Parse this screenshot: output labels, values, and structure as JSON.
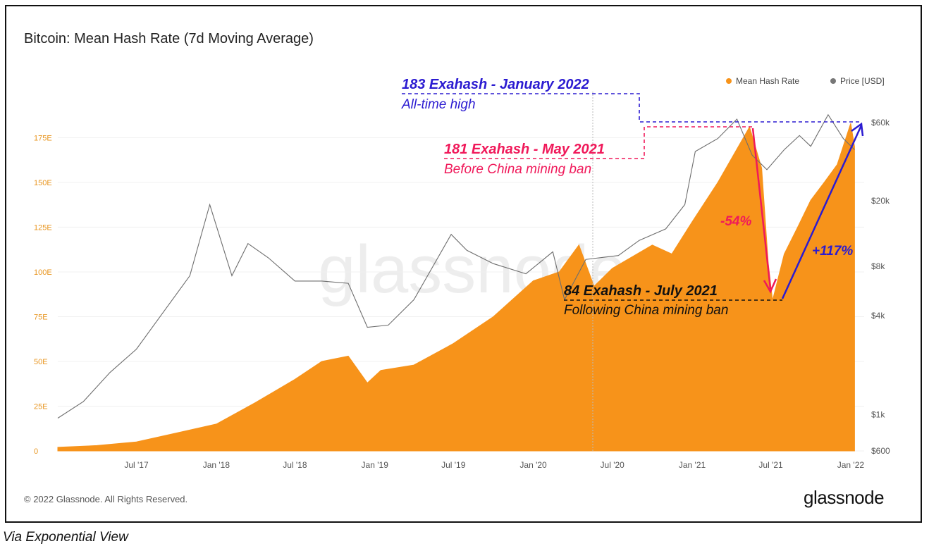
{
  "title": "Bitcoin: Mean Hash Rate (7d Moving Average)",
  "copyright": "© 2022 Glassnode. All Rights Reserved.",
  "brand": "glassnode",
  "watermark": "glassnode",
  "caption": "Via Exponential View",
  "legend": [
    {
      "label": "Mean Hash Rate",
      "color": "#f7931a"
    },
    {
      "label": "Price [USD]",
      "color": "#777777"
    }
  ],
  "annotations": {
    "ath_title": "183 Exahash - January 2022",
    "ath_sub": "All-time high",
    "may_title": "181 Exahash - May 2021",
    "may_sub": "Before China mining ban",
    "jul_title": "84 Exahash - July 2021",
    "jul_sub": "Following China mining ban",
    "drop": "-54%",
    "rise": "+117%",
    "colors": {
      "blue": "#2b1bd1",
      "pink": "#f0195a",
      "black": "#111111"
    }
  },
  "chart_data": {
    "type": "area",
    "x_ticks": [
      "Jul '17",
      "Jan '18",
      "Jul '18",
      "Jan '19",
      "Jul '19",
      "Jan '20",
      "Jul '20",
      "Jan '21",
      "Jul '21",
      "Jan '22"
    ],
    "xlim": [
      "2017-01-01",
      "2022-02-01"
    ],
    "left_axis": {
      "ticks": [
        "0",
        "25E",
        "50E",
        "75E",
        "100E",
        "125E",
        "150E",
        "175E"
      ],
      "ylim": [
        0,
        185
      ]
    },
    "right_axis": {
      "ticks": [
        "$600",
        "$1k",
        "$4k",
        "$8k",
        "$20k",
        "$60k"
      ],
      "scale": "log"
    },
    "series": [
      {
        "name": "Mean Hash Rate",
        "axis": "left",
        "color": "#f7931a",
        "x": [
          "2017-01-01",
          "2017-04-01",
          "2017-07-01",
          "2017-10-01",
          "2018-01-01",
          "2018-04-01",
          "2018-07-01",
          "2018-09-01",
          "2018-11-01",
          "2018-12-15",
          "2019-01-15",
          "2019-04-01",
          "2019-07-01",
          "2019-10-01",
          "2020-01-01",
          "2020-03-01",
          "2020-04-15",
          "2020-05-20",
          "2020-07-01",
          "2020-10-01",
          "2020-11-15",
          "2021-01-01",
          "2021-03-01",
          "2021-05-13",
          "2021-06-10",
          "2021-06-25",
          "2021-07-05",
          "2021-08-01",
          "2021-09-01",
          "2021-10-01",
          "2021-11-01",
          "2021-12-01",
          "2022-01-01",
          "2022-01-10"
        ],
        "values": [
          2,
          3,
          5,
          10,
          15,
          27,
          40,
          50,
          53,
          38,
          45,
          48,
          60,
          75,
          95,
          100,
          115,
          92,
          102,
          115,
          110,
          128,
          150,
          181,
          158,
          105,
          84,
          110,
          125,
          140,
          150,
          160,
          183,
          170
        ]
      },
      {
        "name": "Price [USD]",
        "axis": "right",
        "color": "#777777",
        "x": [
          "2017-01-01",
          "2017-03-01",
          "2017-05-01",
          "2017-07-01",
          "2017-09-01",
          "2017-11-01",
          "2017-12-17",
          "2018-02-06",
          "2018-03-15",
          "2018-05-01",
          "2018-07-01",
          "2018-09-01",
          "2018-11-01",
          "2018-12-15",
          "2019-02-01",
          "2019-04-01",
          "2019-06-26",
          "2019-08-01",
          "2019-10-01",
          "2019-12-15",
          "2020-02-15",
          "2020-03-13",
          "2020-05-01",
          "2020-07-15",
          "2020-09-01",
          "2020-11-01",
          "2020-12-15",
          "2021-01-08",
          "2021-03-01",
          "2021-04-14",
          "2021-05-19",
          "2021-06-22",
          "2021-08-01",
          "2021-09-05",
          "2021-10-01",
          "2021-11-10",
          "2021-12-15",
          "2022-01-10"
        ],
        "values": [
          950,
          1200,
          1800,
          2500,
          4200,
          7000,
          19000,
          7000,
          11000,
          9000,
          6500,
          6500,
          6300,
          3400,
          3500,
          5000,
          12500,
          10000,
          8300,
          7200,
          9800,
          5000,
          8800,
          9300,
          11500,
          13500,
          19000,
          40000,
          48000,
          63000,
          38000,
          31000,
          41000,
          50000,
          43000,
          67000,
          48000,
          41000
        ]
      }
    ]
  }
}
